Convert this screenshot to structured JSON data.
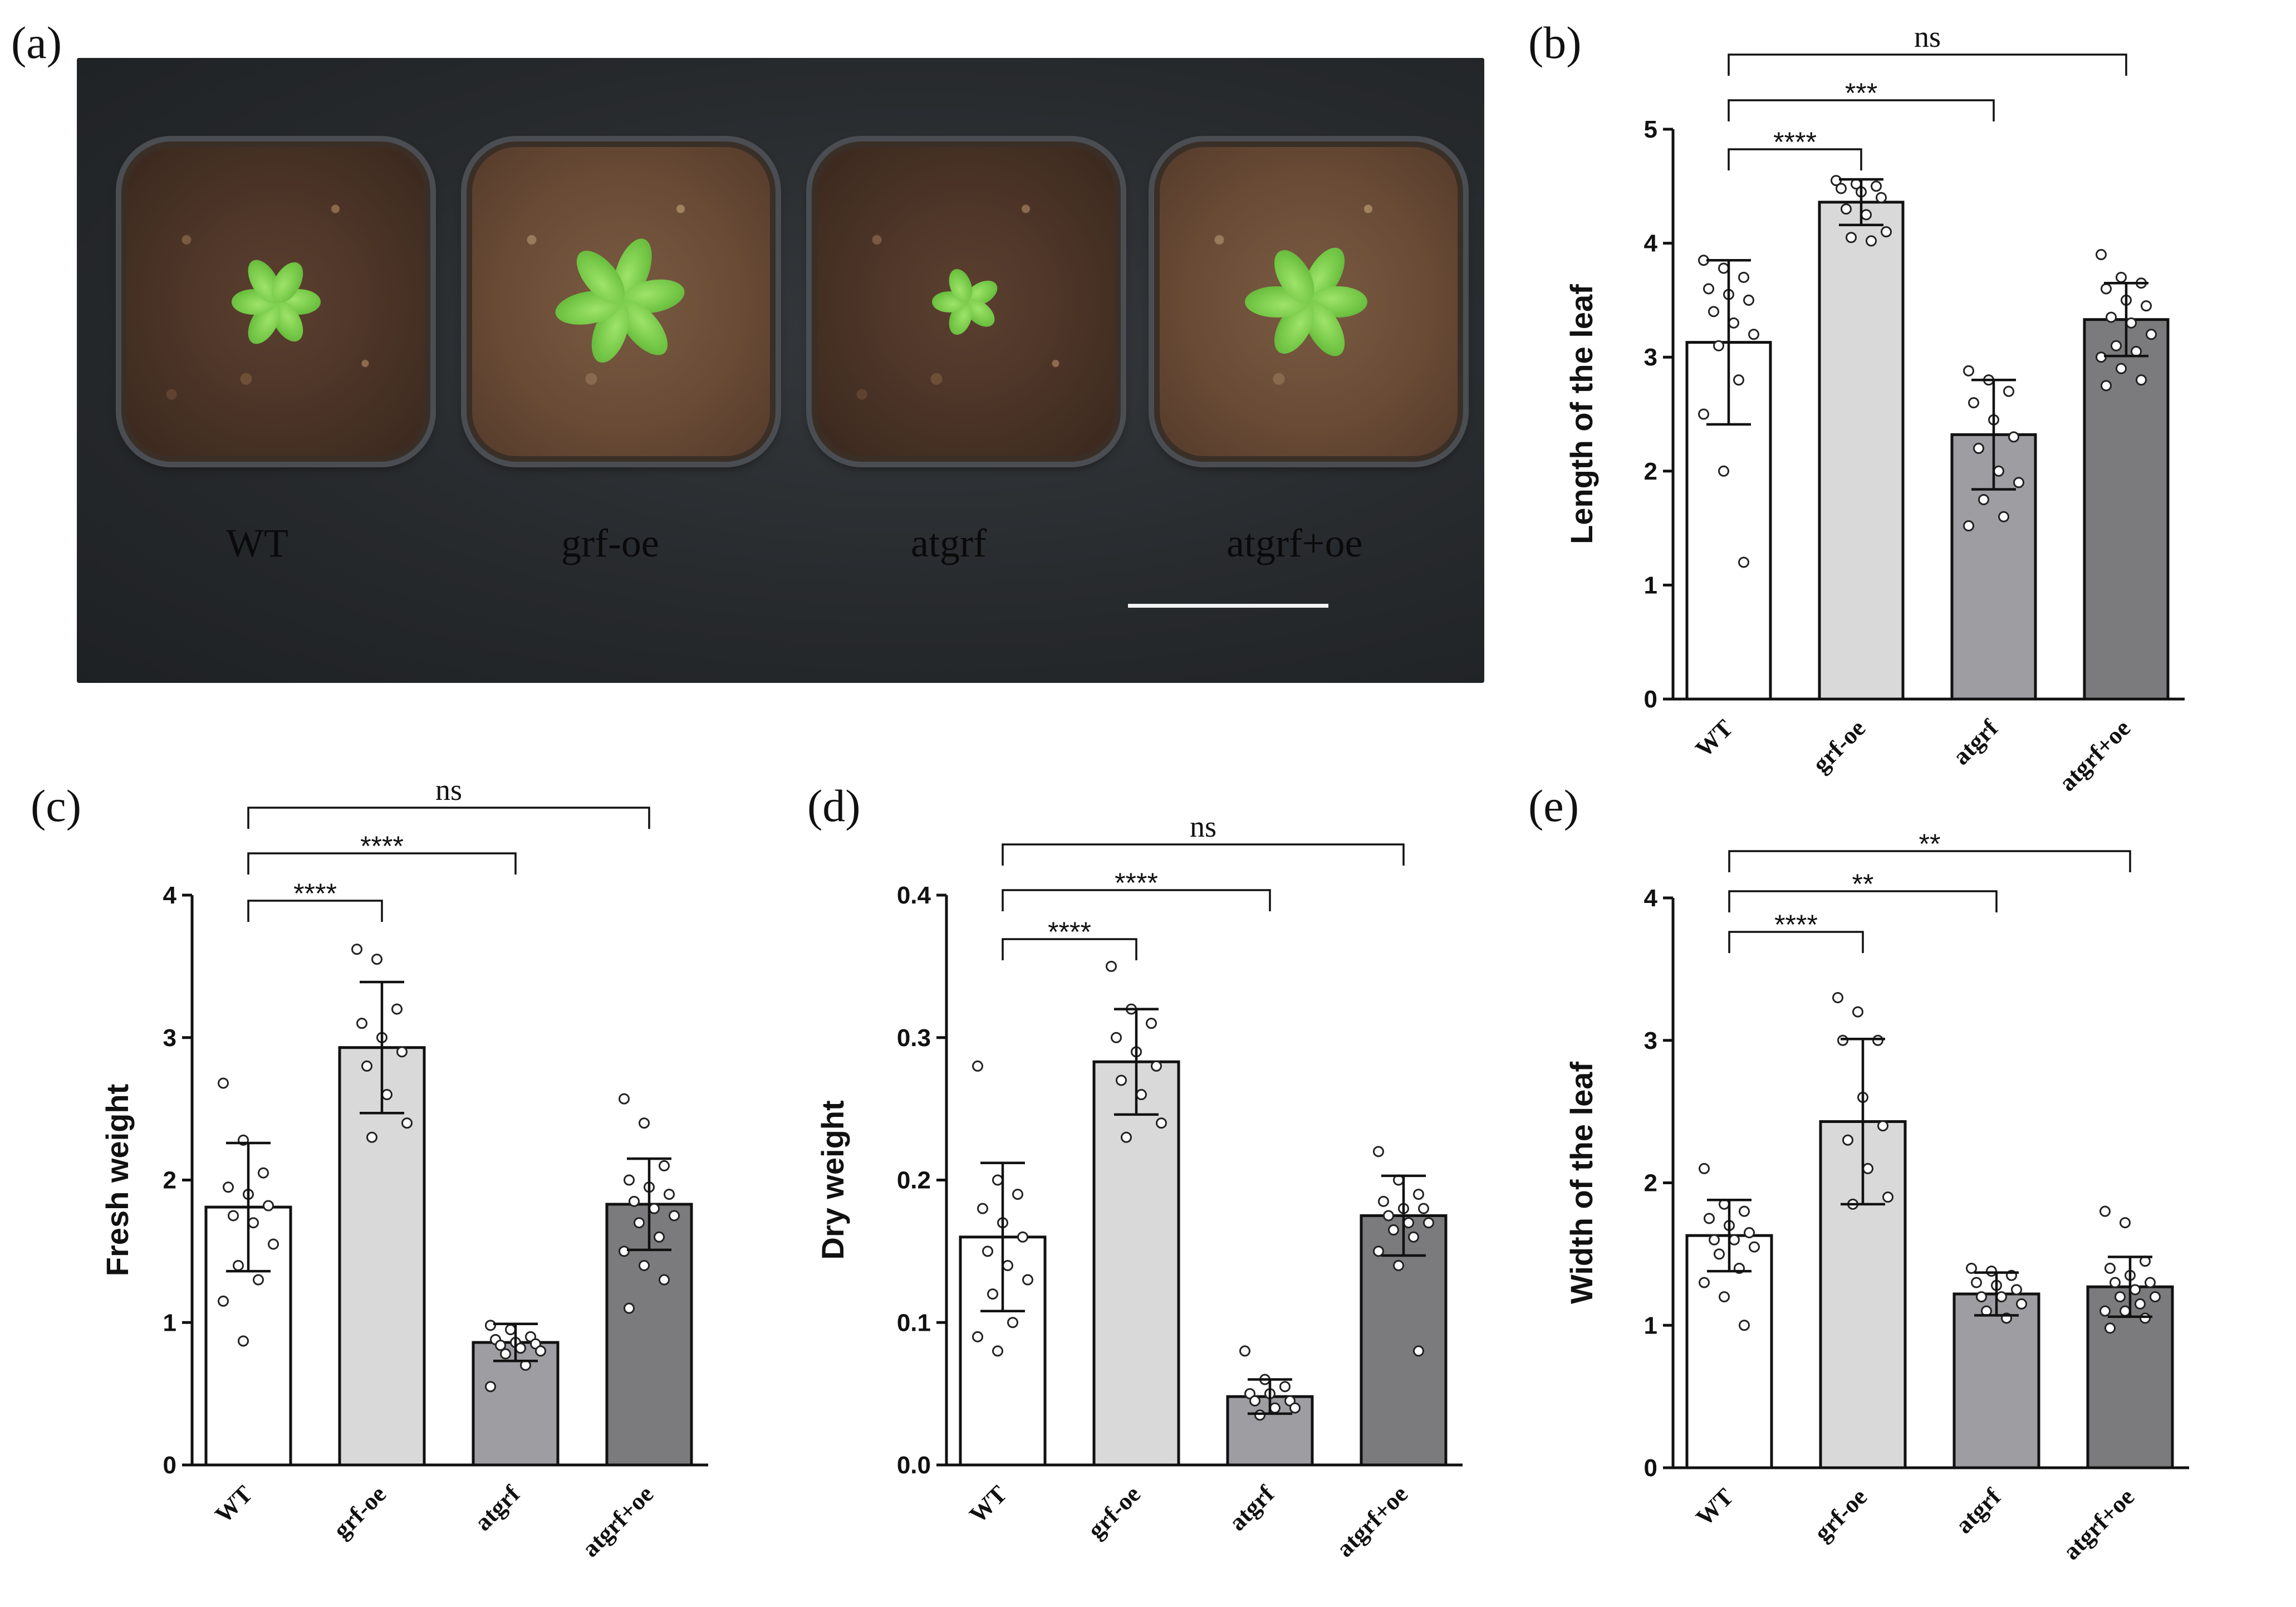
{
  "panel_labels": [
    "(a)",
    "(b)",
    "(c)",
    "(d)",
    "(e)"
  ],
  "photo": {
    "genotype_labels": [
      "WT",
      "grf-oe",
      "atgrf",
      "atgrf+oe"
    ]
  },
  "colors": {
    "bar_fills": [
      "#ffffff",
      "#d9d9d9",
      "#9d9da2",
      "#7b7b7d"
    ],
    "bar_stroke": "#111111",
    "point_fill": "#ffffff"
  },
  "chart_data": [
    {
      "panel": "(b)",
      "type": "bar",
      "ylabel": "Length of the leaf",
      "categories": [
        "WT",
        "grf-oe",
        "atgrf",
        "atgrf+oe"
      ],
      "values": [
        3.13,
        4.36,
        2.32,
        3.33
      ],
      "sd": [
        0.72,
        0.2,
        0.48,
        0.32
      ],
      "ylim": [
        0,
        5
      ],
      "yticks": [
        "0",
        "1",
        "2",
        "3",
        "4",
        "5"
      ],
      "points": [
        [
          3.85,
          3.78,
          3.7,
          3.6,
          3.55,
          3.5,
          3.4,
          3.3,
          3.2,
          3.1,
          2.8,
          2.5,
          2.0,
          1.2
        ],
        [
          4.55,
          4.52,
          4.5,
          4.48,
          4.45,
          4.4,
          4.3,
          4.25,
          4.1,
          4.05,
          4.02
        ],
        [
          2.88,
          2.8,
          2.7,
          2.6,
          2.45,
          2.3,
          2.2,
          2.0,
          1.9,
          1.75,
          1.6,
          1.52
        ],
        [
          3.9,
          3.7,
          3.65,
          3.6,
          3.5,
          3.45,
          3.35,
          3.3,
          3.2,
          3.1,
          3.05,
          3.0,
          2.9,
          2.8,
          2.75
        ]
      ],
      "comparisons": [
        {
          "to": 1,
          "label": "****"
        },
        {
          "to": 2,
          "label": "***"
        },
        {
          "to": 3,
          "label": "ns"
        }
      ]
    },
    {
      "panel": "(c)",
      "type": "bar",
      "ylabel": "Fresh weight",
      "categories": [
        "WT",
        "grf-oe",
        "atgrf",
        "atgrf+oe"
      ],
      "values": [
        1.81,
        2.93,
        0.86,
        1.83
      ],
      "sd": [
        0.45,
        0.46,
        0.13,
        0.32
      ],
      "ylim": [
        0,
        4
      ],
      "yticks": [
        "0",
        "1",
        "2",
        "3",
        "4"
      ],
      "points": [
        [
          2.68,
          2.28,
          2.05,
          1.95,
          1.9,
          1.82,
          1.75,
          1.7,
          1.55,
          1.4,
          1.3,
          1.15,
          0.87
        ],
        [
          3.62,
          3.55,
          3.2,
          3.1,
          3.0,
          2.9,
          2.8,
          2.6,
          2.4,
          2.3
        ],
        [
          0.98,
          0.95,
          0.9,
          0.88,
          0.86,
          0.85,
          0.84,
          0.82,
          0.8,
          0.78,
          0.7,
          0.55
        ],
        [
          2.57,
          2.4,
          2.1,
          2.0,
          1.95,
          1.9,
          1.85,
          1.8,
          1.75,
          1.7,
          1.6,
          1.5,
          1.4,
          1.3,
          1.1
        ]
      ],
      "comparisons": [
        {
          "to": 1,
          "label": "****"
        },
        {
          "to": 2,
          "label": "****"
        },
        {
          "to": 3,
          "label": "ns"
        }
      ]
    },
    {
      "panel": "(d)",
      "type": "bar",
      "ylabel": "Dry weight",
      "categories": [
        "WT",
        "grf-oe",
        "atgrf",
        "atgrf+oe"
      ],
      "values": [
        0.16,
        0.283,
        0.048,
        0.175
      ],
      "sd": [
        0.052,
        0.037,
        0.012,
        0.028
      ],
      "ylim": [
        0,
        0.4
      ],
      "yticks": [
        "0.0",
        "0.1",
        "0.2",
        "0.3",
        "0.4"
      ],
      "points": [
        [
          0.28,
          0.2,
          0.19,
          0.18,
          0.17,
          0.16,
          0.15,
          0.14,
          0.13,
          0.12,
          0.1,
          0.09,
          0.08
        ],
        [
          0.35,
          0.32,
          0.31,
          0.3,
          0.29,
          0.28,
          0.27,
          0.26,
          0.24,
          0.23
        ],
        [
          0.08,
          0.06,
          0.055,
          0.05,
          0.05,
          0.045,
          0.045,
          0.04,
          0.04,
          0.035
        ],
        [
          0.22,
          0.2,
          0.19,
          0.185,
          0.18,
          0.18,
          0.175,
          0.17,
          0.17,
          0.165,
          0.16,
          0.15,
          0.14,
          0.08
        ]
      ],
      "comparisons": [
        {
          "to": 1,
          "label": "****"
        },
        {
          "to": 2,
          "label": "****"
        },
        {
          "to": 3,
          "label": "ns"
        }
      ]
    },
    {
      "panel": "(e)",
      "type": "bar",
      "ylabel": "Width  of  the leaf",
      "categories": [
        "WT",
        "grf-oe",
        "atgrf",
        "atgrf+oe"
      ],
      "values": [
        1.63,
        2.43,
        1.22,
        1.27
      ],
      "sd": [
        0.25,
        0.58,
        0.15,
        0.21
      ],
      "ylim": [
        0,
        4
      ],
      "yticks": [
        "0",
        "1",
        "2",
        "3",
        "4"
      ],
      "points": [
        [
          2.1,
          1.85,
          1.8,
          1.75,
          1.7,
          1.65,
          1.6,
          1.6,
          1.55,
          1.5,
          1.4,
          1.3,
          1.2,
          1.0
        ],
        [
          3.3,
          3.2,
          3.0,
          3.0,
          2.6,
          2.4,
          2.3,
          2.1,
          1.9,
          1.85
        ],
        [
          1.4,
          1.38,
          1.35,
          1.3,
          1.28,
          1.25,
          1.2,
          1.2,
          1.15,
          1.1,
          1.05
        ],
        [
          1.8,
          1.72,
          1.45,
          1.4,
          1.35,
          1.3,
          1.3,
          1.25,
          1.2,
          1.2,
          1.15,
          1.1,
          1.1,
          1.05,
          0.98
        ]
      ],
      "comparisons": [
        {
          "to": 1,
          "label": "****"
        },
        {
          "to": 2,
          "label": "**"
        },
        {
          "to": 3,
          "label": "**"
        }
      ]
    }
  ]
}
